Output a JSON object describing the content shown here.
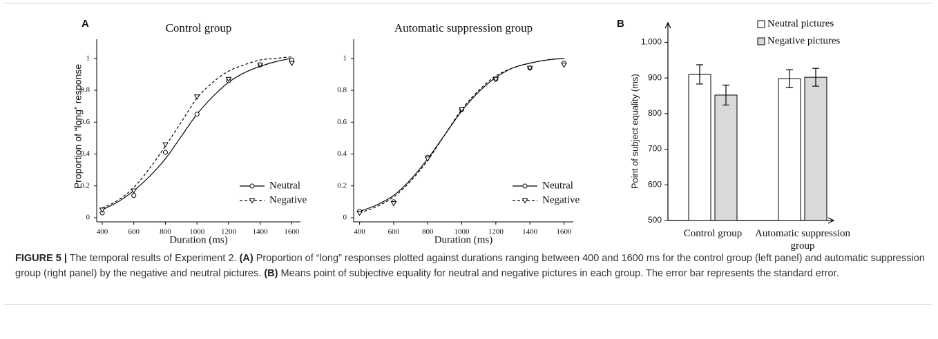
{
  "chart_data": [
    {
      "type": "line",
      "panel_label": "A",
      "title": "Control group",
      "x_label": "Duration (ms)",
      "y_label": "Proportion of “long” response",
      "x": [
        400,
        600,
        800,
        1000,
        1200,
        1400,
        1600
      ],
      "fit_x": [
        400,
        500,
        600,
        700,
        800,
        900,
        1000,
        1100,
        1200,
        1300,
        1400,
        1500,
        1600
      ],
      "series": [
        {
          "name": "Neutral",
          "color": "#000000",
          "marker": "circle",
          "dashed": false,
          "values": [
            0.03,
            0.14,
            0.41,
            0.65,
            0.86,
            0.96,
            0.99
          ],
          "fit": [
            0.05,
            0.1,
            0.17,
            0.26,
            0.37,
            0.51,
            0.65,
            0.76,
            0.85,
            0.91,
            0.95,
            0.98,
            1.0
          ]
        },
        {
          "name": "Negative",
          "color": "#000000",
          "marker": "triangle",
          "dashed": true,
          "values": [
            0.05,
            0.17,
            0.46,
            0.76,
            0.87,
            0.96,
            0.97
          ],
          "fit": [
            0.06,
            0.11,
            0.19,
            0.31,
            0.45,
            0.6,
            0.75,
            0.85,
            0.92,
            0.96,
            0.99,
            1.0,
            1.01
          ]
        }
      ],
      "xlim": [
        365,
        1655
      ],
      "xticks": [
        400,
        600,
        800,
        1000,
        1200,
        1400,
        1600
      ],
      "ylim": [
        -0.026,
        1.12
      ],
      "yticks": [
        0,
        0.2,
        0.4,
        0.6,
        0.8,
        1
      ],
      "legend": "lower right"
    },
    {
      "type": "line",
      "title": "Automatic suppression group",
      "x_label": "Duration (ms)",
      "x": [
        400,
        600,
        800,
        1000,
        1200,
        1400,
        1600
      ],
      "fit_x": [
        400,
        500,
        600,
        700,
        800,
        900,
        1000,
        1100,
        1200,
        1300,
        1400,
        1500,
        1600
      ],
      "series": [
        {
          "name": "Neutral",
          "color": "#000000",
          "marker": "circle",
          "dashed": false,
          "values": [
            0.04,
            0.1,
            0.38,
            0.68,
            0.87,
            0.94,
            0.97
          ],
          "fit": [
            0.04,
            0.08,
            0.14,
            0.24,
            0.37,
            0.52,
            0.67,
            0.79,
            0.88,
            0.94,
            0.97,
            0.99,
            1.0
          ]
        },
        {
          "name": "Negative",
          "color": "#000000",
          "marker": "triangle",
          "dashed": true,
          "values": [
            0.03,
            0.09,
            0.37,
            0.68,
            0.87,
            0.94,
            0.96
          ],
          "fit": [
            0.03,
            0.07,
            0.13,
            0.23,
            0.36,
            0.52,
            0.68,
            0.8,
            0.89,
            0.94,
            0.97,
            0.99,
            1.0
          ]
        }
      ],
      "xlim": [
        365,
        1655
      ],
      "xticks": [
        400,
        600,
        800,
        1000,
        1200,
        1400,
        1600
      ],
      "ylim": [
        -0.026,
        1.12
      ],
      "yticks": [
        0,
        0.2,
        0.4,
        0.6,
        0.8,
        1
      ],
      "legend": "lower right"
    },
    {
      "type": "bar",
      "panel_label": "B",
      "y_label": "Point of subject equality (ms)",
      "categories": [
        "Control group",
        "Automatic suppression group"
      ],
      "series": [
        {
          "name": "Neutral pictures",
          "color": "#ffffff",
          "values": [
            910,
            898
          ],
          "errors": [
            27,
            25
          ]
        },
        {
          "name": "Negative pictures",
          "color": "#d9d9d9",
          "values": [
            852,
            902
          ],
          "errors": [
            28,
            25
          ]
        }
      ],
      "ylim": [
        500,
        1055
      ],
      "yticks": [
        500,
        600,
        700,
        800,
        900,
        {
          "value": 1000,
          "label": "1,000"
        }
      ],
      "legend": "upper center"
    }
  ],
  "caption": [
    {
      "text": "FIGURE 5 |",
      "bold": true
    },
    {
      "text": "The temporal results of Experiment 2.",
      "bold": false
    },
    {
      "text": "(A)",
      "bold": true
    },
    {
      "text": "Proportion of “long” responses plotted against durations ranging between 400 and 1600 ms for the control group (left panel) and automatic suppression group (right panel) by the negative and neutral pictures.",
      "bold": false
    },
    {
      "text": "(B)",
      "bold": true
    },
    {
      "text": "Means point of subjective equality for neutral and negative pictures in each group. The error bar represents the standard error.",
      "bold": false
    }
  ]
}
